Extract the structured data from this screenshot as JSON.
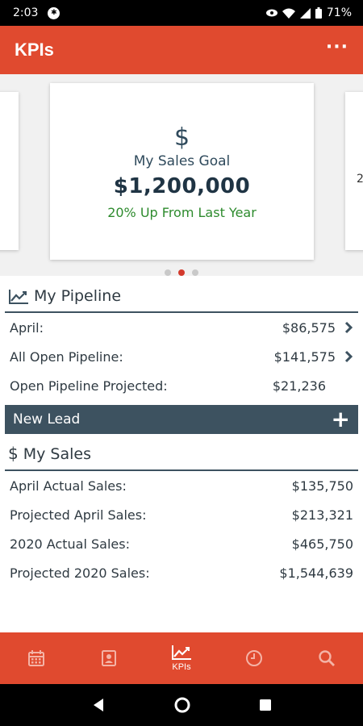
{
  "status_bar": {
    "time": "2:03",
    "battery": "71%"
  },
  "app_bar": {
    "title": "KPIs",
    "more_label": "···"
  },
  "carousel": {
    "peek_right_text": "2",
    "card": {
      "icon": "$",
      "label": "My Sales Goal",
      "value": "$1,200,000",
      "subtitle": "20% Up From Last Year"
    },
    "page_count": 3,
    "active_index": 1
  },
  "pipeline": {
    "title": "My Pipeline",
    "icon": "trend-chart-icon",
    "rows": [
      {
        "label": "April:",
        "value": "$86,575",
        "has_chevron": true
      },
      {
        "label": "All Open Pipeline:",
        "value": "$141,575",
        "has_chevron": true
      },
      {
        "label": "Open Pipeline Projected:",
        "value": "$21,236",
        "has_chevron": false
      }
    ]
  },
  "new_lead": {
    "label": "New Lead",
    "plus": "+"
  },
  "sales": {
    "title": "My Sales",
    "icon": "$",
    "rows": [
      {
        "label": "April Actual Sales:",
        "value": "$135,750"
      },
      {
        "label": "Projected April Sales:",
        "value": "$213,321"
      },
      {
        "label": "2020 Actual Sales:",
        "value": "$465,750"
      },
      {
        "label": "Projected 2020 Sales:",
        "value": "$1,544,639"
      }
    ]
  },
  "bottom_nav": {
    "items": [
      {
        "icon": "calendar-icon",
        "label": ""
      },
      {
        "icon": "contacts-icon",
        "label": ""
      },
      {
        "icon": "kpi-chart-icon",
        "label": "KPIs"
      },
      {
        "icon": "clock-icon",
        "label": ""
      },
      {
        "icon": "search-icon",
        "label": ""
      }
    ],
    "active_index": 2
  },
  "colors": {
    "brand": "#e04a2f",
    "header_dark": "#3d5260",
    "positive": "#2e8b2e",
    "dot_active": "#d33a2c"
  }
}
